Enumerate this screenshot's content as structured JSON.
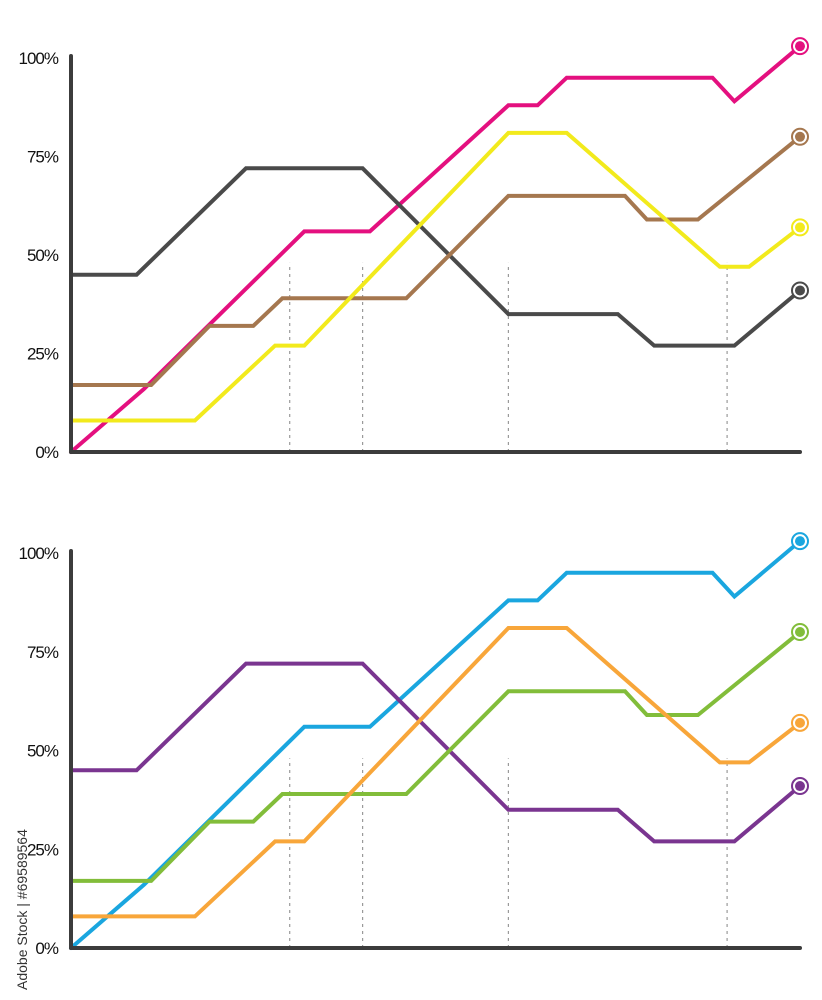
{
  "credit": "Adobe Stock | #69589564",
  "chart_data": [
    {
      "type": "line",
      "title": "",
      "xlabel": "",
      "ylabel": "",
      "ylim": [
        0,
        100
      ],
      "yticks": [
        "0%",
        "25%",
        "50%",
        "75%",
        "100%"
      ],
      "x": [
        0,
        1,
        2,
        3,
        4,
        5,
        6,
        7,
        8,
        9,
        10
      ],
      "guides": [
        3,
        4,
        6,
        9
      ],
      "series": [
        {
          "name": "magenta",
          "color": "#e4107f",
          "points": [
            [
              0,
              0
            ],
            [
              1,
              16
            ],
            [
              3.2,
              56
            ],
            [
              4.1,
              56
            ],
            [
              6,
              88
            ],
            [
              6.4,
              88
            ],
            [
              6.8,
              95
            ],
            [
              8.8,
              95
            ],
            [
              9.1,
              89
            ],
            [
              10,
              103
            ]
          ]
        },
        {
          "name": "gray",
          "color": "#4a4a4a",
          "points": [
            [
              0,
              45
            ],
            [
              0.9,
              45
            ],
            [
              2.4,
              72
            ],
            [
              4,
              72
            ],
            [
              6,
              35
            ],
            [
              7.5,
              35
            ],
            [
              8,
              27
            ],
            [
              9.1,
              27
            ],
            [
              10,
              41
            ]
          ]
        },
        {
          "name": "brown",
          "color": "#a5774f",
          "points": [
            [
              0,
              17
            ],
            [
              1.1,
              17
            ],
            [
              1.9,
              32
            ],
            [
              2.5,
              32
            ],
            [
              2.9,
              39
            ],
            [
              4.6,
              39
            ],
            [
              6,
              65
            ],
            [
              7.6,
              65
            ],
            [
              7.9,
              59
            ],
            [
              8.6,
              59
            ],
            [
              10,
              80
            ]
          ]
        },
        {
          "name": "yellow",
          "color": "#f2ea1c",
          "points": [
            [
              0,
              8
            ],
            [
              1.7,
              8
            ],
            [
              2.8,
              27
            ],
            [
              3.2,
              27
            ],
            [
              6,
              81
            ],
            [
              6.8,
              81
            ],
            [
              8.9,
              47
            ],
            [
              9.3,
              47
            ],
            [
              10,
              57
            ]
          ]
        }
      ]
    },
    {
      "type": "line",
      "title": "",
      "xlabel": "",
      "ylabel": "",
      "ylim": [
        0,
        100
      ],
      "yticks": [
        "0%",
        "25%",
        "50%",
        "75%",
        "100%"
      ],
      "x": [
        0,
        1,
        2,
        3,
        4,
        5,
        6,
        7,
        8,
        9,
        10
      ],
      "guides": [
        3,
        4,
        6,
        9
      ],
      "series": [
        {
          "name": "blue",
          "color": "#1aa6df",
          "points": [
            [
              0,
              0
            ],
            [
              1,
              16
            ],
            [
              3.2,
              56
            ],
            [
              4.1,
              56
            ],
            [
              6,
              88
            ],
            [
              6.4,
              88
            ],
            [
              6.8,
              95
            ],
            [
              8.8,
              95
            ],
            [
              9.1,
              89
            ],
            [
              10,
              103
            ]
          ]
        },
        {
          "name": "purple",
          "color": "#7a3590",
          "points": [
            [
              0,
              45
            ],
            [
              0.9,
              45
            ],
            [
              2.4,
              72
            ],
            [
              4,
              72
            ],
            [
              6,
              35
            ],
            [
              7.5,
              35
            ],
            [
              8,
              27
            ],
            [
              9.1,
              27
            ],
            [
              10,
              41
            ]
          ]
        },
        {
          "name": "green",
          "color": "#82bd3a",
          "points": [
            [
              0,
              17
            ],
            [
              1.1,
              17
            ],
            [
              1.9,
              32
            ],
            [
              2.5,
              32
            ],
            [
              2.9,
              39
            ],
            [
              4.6,
              39
            ],
            [
              6,
              65
            ],
            [
              7.6,
              65
            ],
            [
              7.9,
              59
            ],
            [
              8.6,
              59
            ],
            [
              10,
              80
            ]
          ]
        },
        {
          "name": "orange",
          "color": "#f8a63a",
          "points": [
            [
              0,
              8
            ],
            [
              1.7,
              8
            ],
            [
              2.8,
              27
            ],
            [
              3.2,
              27
            ],
            [
              6,
              81
            ],
            [
              6.8,
              81
            ],
            [
              8.9,
              47
            ],
            [
              9.3,
              47
            ],
            [
              10,
              57
            ]
          ]
        }
      ]
    }
  ]
}
